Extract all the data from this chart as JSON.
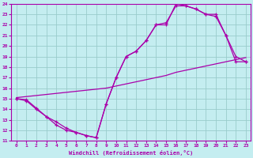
{
  "xlabel": "Windchill (Refroidissement éolien,°C)",
  "xlim": [
    -0.5,
    23.5
  ],
  "ylim": [
    11,
    24
  ],
  "xticks": [
    0,
    1,
    2,
    3,
    4,
    5,
    6,
    7,
    8,
    9,
    10,
    11,
    12,
    13,
    14,
    15,
    16,
    17,
    18,
    19,
    20,
    21,
    22,
    23
  ],
  "yticks": [
    11,
    12,
    13,
    14,
    15,
    16,
    17,
    18,
    19,
    20,
    21,
    22,
    23,
    24
  ],
  "bg_color": "#c4edf0",
  "line_color": "#aa00aa",
  "grid_color": "#99cccc",
  "curve1_x": [
    0,
    1,
    2,
    3,
    4,
    5,
    6,
    7,
    8,
    9,
    10,
    11,
    12,
    13,
    14,
    15,
    16,
    17,
    18,
    19,
    20,
    21,
    22,
    23
  ],
  "curve1_y": [
    15,
    14.8,
    14.0,
    13.3,
    12.8,
    12.2,
    11.8,
    11.5,
    11.3,
    14.5,
    17.0,
    19.0,
    19.5,
    20.5,
    22.0,
    22.2,
    23.8,
    23.8,
    23.5,
    23.0,
    23.0,
    21.0,
    19.0,
    18.5
  ],
  "curve2_x": [
    0,
    1,
    2,
    3,
    4,
    5,
    6,
    7,
    8,
    9,
    10,
    11,
    12,
    13,
    14,
    15,
    16,
    17,
    18,
    19,
    20,
    21,
    22,
    23
  ],
  "curve2_y": [
    15,
    14.9,
    14.1,
    13.3,
    12.5,
    12.0,
    11.8,
    11.5,
    11.3,
    14.5,
    17.0,
    19.0,
    19.5,
    20.5,
    22.0,
    22.0,
    24.0,
    23.8,
    23.5,
    23.0,
    22.8,
    21.0,
    18.5,
    18.5
  ],
  "line3_x": [
    0,
    1,
    2,
    3,
    4,
    5,
    6,
    7,
    8,
    9,
    10,
    11,
    12,
    13,
    14,
    15,
    16,
    17,
    18,
    19,
    20,
    21,
    22,
    23
  ],
  "line3_y": [
    15.1,
    15.2,
    15.3,
    15.4,
    15.5,
    15.6,
    15.7,
    15.8,
    15.9,
    16.0,
    16.2,
    16.4,
    16.6,
    16.8,
    17.0,
    17.2,
    17.5,
    17.7,
    17.9,
    18.1,
    18.3,
    18.5,
    18.7,
    18.9
  ]
}
